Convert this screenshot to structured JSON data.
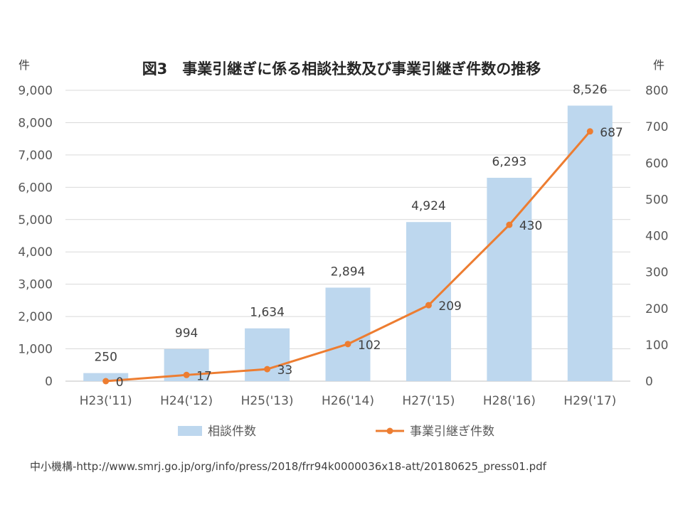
{
  "chart_data": {
    "type": "bar",
    "title": "図3　事業引継ぎに係る相談社数及び事業引継ぎ件数の推移",
    "categories": [
      "H23('11)",
      "H24('12)",
      "H25('13)",
      "H26('14)",
      "H27('15)",
      "H28('16)",
      "H29('17)"
    ],
    "series": [
      {
        "name": "相談件数",
        "type": "bar",
        "axis": "left",
        "color": "#BDD7EE",
        "values": [
          250,
          994,
          1634,
          2894,
          4924,
          6293,
          8526
        ],
        "labels": [
          "250",
          "994",
          "1,634",
          "2,894",
          "4,924",
          "6,293",
          "8,526"
        ]
      },
      {
        "name": "事業引継ぎ件数",
        "type": "line",
        "axis": "right",
        "color": "#ED7D31",
        "values": [
          0,
          17,
          33,
          102,
          209,
          430,
          687
        ],
        "labels": [
          "0",
          "17",
          "33",
          "102",
          "209",
          "430",
          "687"
        ]
      }
    ],
    "y_left": {
      "unit": "件",
      "ylim": [
        0,
        9000
      ],
      "ticks": [
        "0",
        "1,000",
        "2,000",
        "3,000",
        "4,000",
        "5,000",
        "6,000",
        "7,000",
        "8,000",
        "9,000"
      ]
    },
    "y_right": {
      "unit": "件",
      "ylim": [
        0,
        800
      ],
      "ticks": [
        "0",
        "100",
        "200",
        "300",
        "400",
        "500",
        "600",
        "700",
        "800"
      ]
    },
    "grid": true,
    "legend": "bottom"
  },
  "source": "中小機構-http://www.smrj.go.jp/org/info/press/2018/frr94k0000036x18-att/20180625_press01.pdf"
}
